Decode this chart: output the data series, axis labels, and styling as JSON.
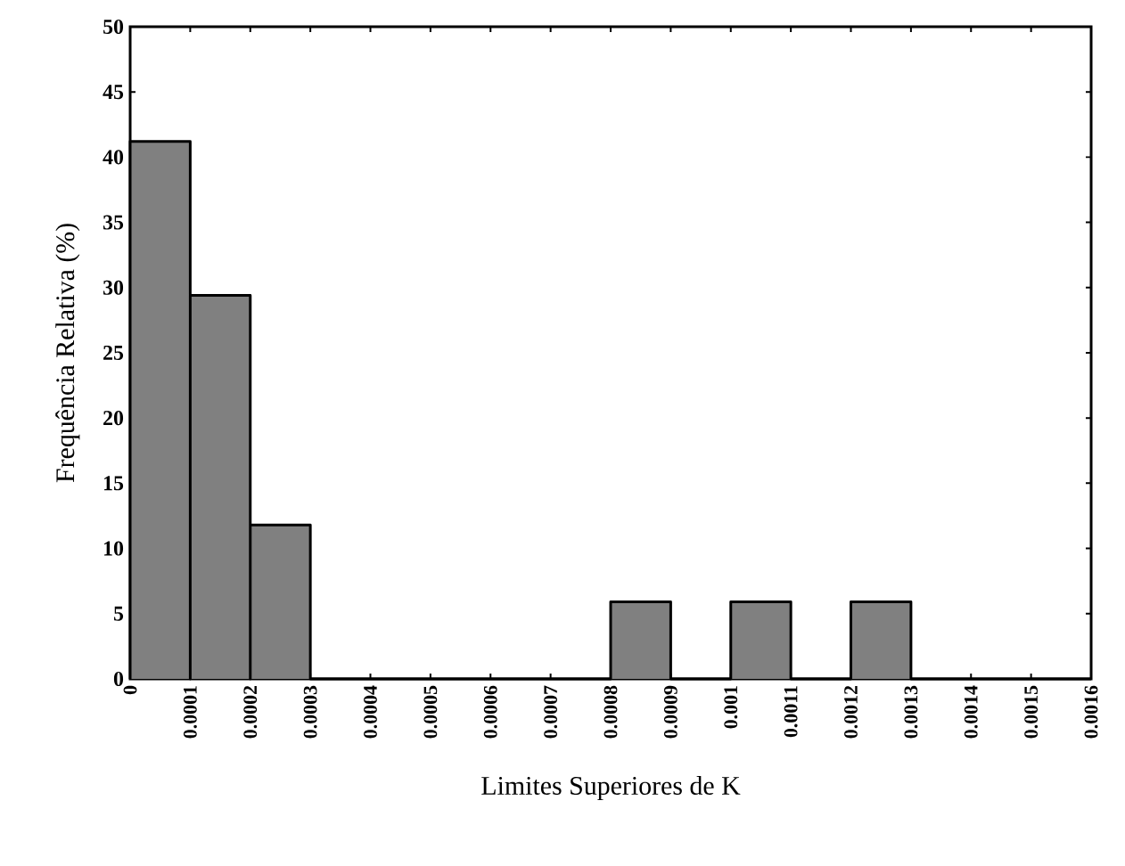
{
  "chart_data": {
    "type": "histogram",
    "xlabel": "Limites Superiores de K",
    "ylabel": "Frequência Relativa (%)",
    "bins": [
      0,
      0.0001,
      0.0002,
      0.0003,
      0.0004,
      0.0005,
      0.0006,
      0.0007,
      0.0008,
      0.0009,
      0.001,
      0.0011,
      0.0012,
      0.0013,
      0.0014,
      0.0015,
      0.0016
    ],
    "values": [
      41.2,
      29.4,
      11.8,
      0,
      0,
      0,
      0,
      0,
      5.9,
      0,
      5.9,
      0,
      5.9,
      0,
      0,
      0
    ],
    "color": "#808080",
    "xlim": [
      0,
      0.0016
    ],
    "ylim": [
      0,
      50
    ],
    "xticks": [
      0,
      0.0001,
      0.0002,
      0.0003,
      0.0004,
      0.0005,
      0.0006,
      0.0007,
      0.0008,
      0.0009,
      0.001,
      0.0011,
      0.0012,
      0.0013,
      0.0014,
      0.0015,
      0.0016
    ],
    "yticks": [
      0,
      5,
      10,
      15,
      20,
      25,
      30,
      35,
      40,
      45,
      50
    ],
    "grid": false
  }
}
